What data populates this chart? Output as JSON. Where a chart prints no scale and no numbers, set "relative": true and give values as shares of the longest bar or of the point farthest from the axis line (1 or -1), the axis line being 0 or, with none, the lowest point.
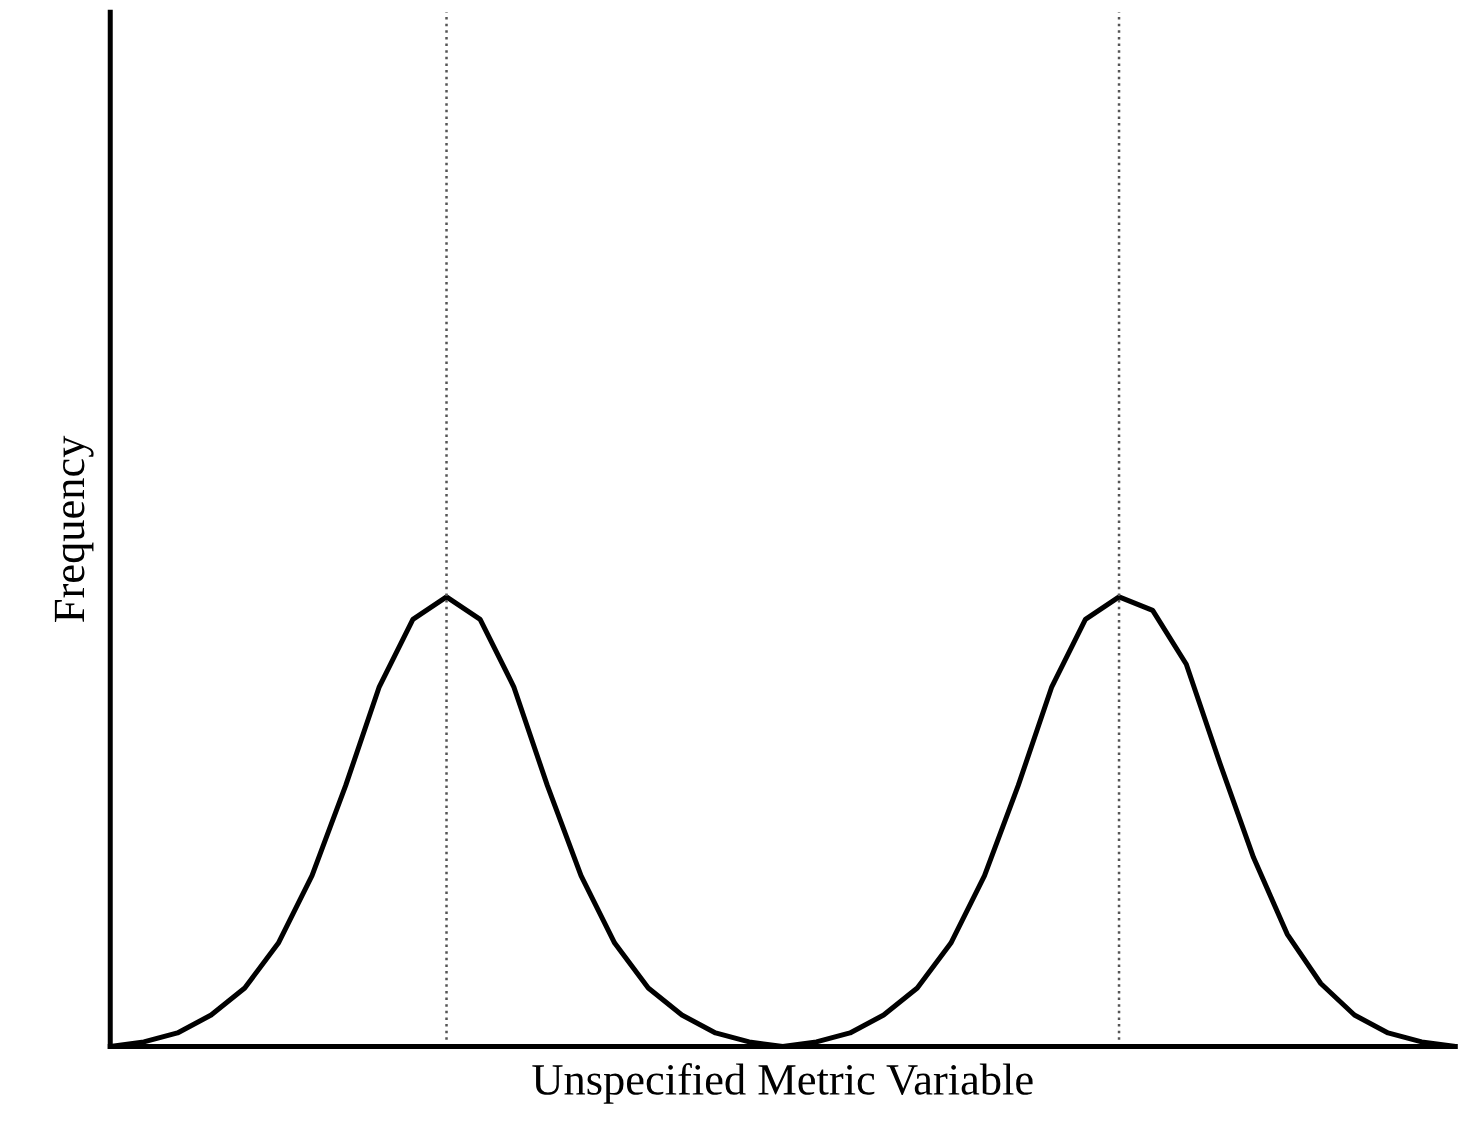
{
  "chart_data": {
    "type": "line",
    "relative": true,
    "xlabel": "Unspecified Metric Variable",
    "ylabel": "Frequency",
    "tick_labels": false,
    "legend": false,
    "marker": "none",
    "line_style": "solid",
    "categories": [
      null,
      null,
      null,
      null,
      null,
      null,
      null,
      null,
      null,
      null,
      null,
      null,
      null,
      null,
      null,
      null,
      null,
      null,
      null,
      null,
      null,
      null,
      null,
      null,
      null,
      null,
      null,
      null,
      null,
      null,
      null,
      null,
      null,
      null,
      null,
      null,
      null,
      null,
      null,
      null,
      null
    ],
    "series": [
      {
        "color": "#000000",
        "values": [
          0,
          0.01,
          0.03,
          0.07,
          0.13,
          0.23,
          0.38,
          0.58,
          0.8,
          0.95,
          1.0,
          0.95,
          0.8,
          0.58,
          0.38,
          0.23,
          0.13,
          0.07,
          0.03,
          0.01,
          0,
          0.01,
          0.03,
          0.07,
          0.13,
          0.23,
          0.38,
          0.58,
          0.8,
          0.95,
          1.0,
          0.97,
          0.85,
          0.63,
          0.42,
          0.25,
          0.14,
          0.07,
          0.03,
          0.01,
          0
        ]
      }
    ]
  }
}
